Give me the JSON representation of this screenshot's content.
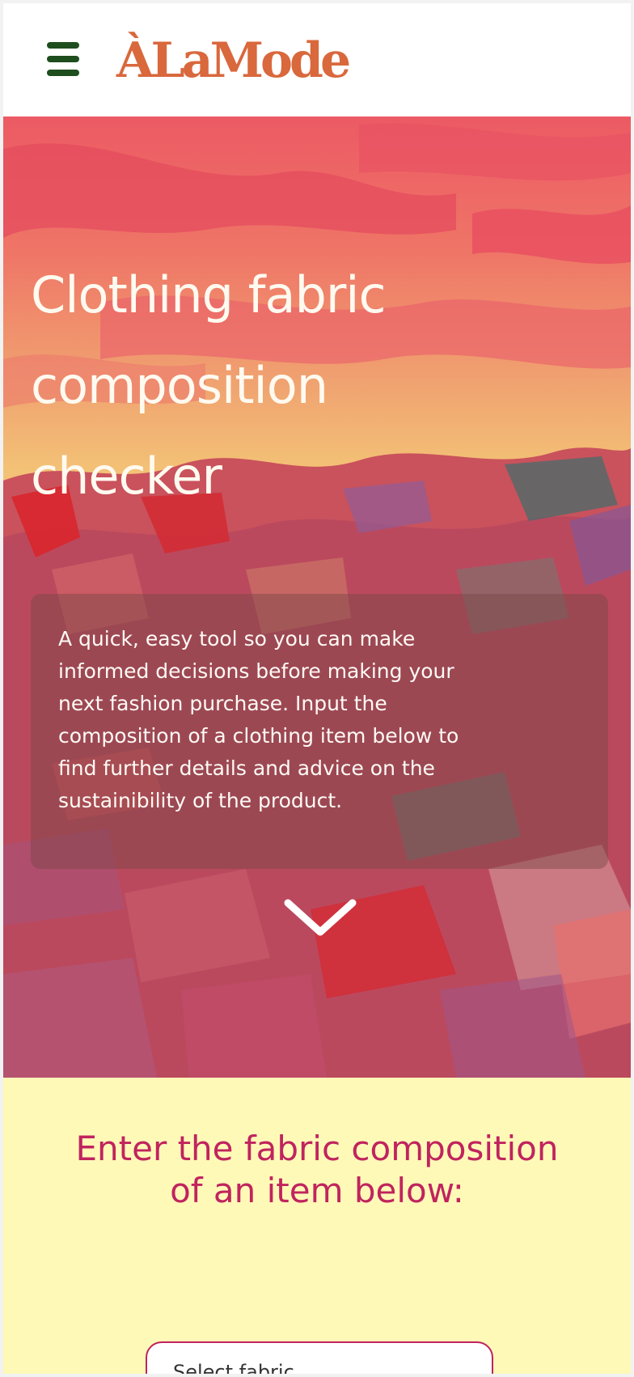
{
  "header": {
    "logo_text": "ÀLaMode",
    "menu_icon": "hamburger-menu-icon",
    "logo_color": "#d9683c",
    "menu_color": "#1e4d1e"
  },
  "hero": {
    "title": "Clothing fabric composition checker",
    "description": "A quick, easy tool so you can make informed decisions before making your next fashion purchase. Input the composition of a clothing item below to find further details and advice on the sustainibility of the product.",
    "scroll_icon": "chevron-down-icon"
  },
  "form": {
    "heading": "Enter the fabric composition of an item below:",
    "select_placeholder": "Select fabric",
    "heading_color": "#c0245e",
    "background": "#fff9b8"
  }
}
